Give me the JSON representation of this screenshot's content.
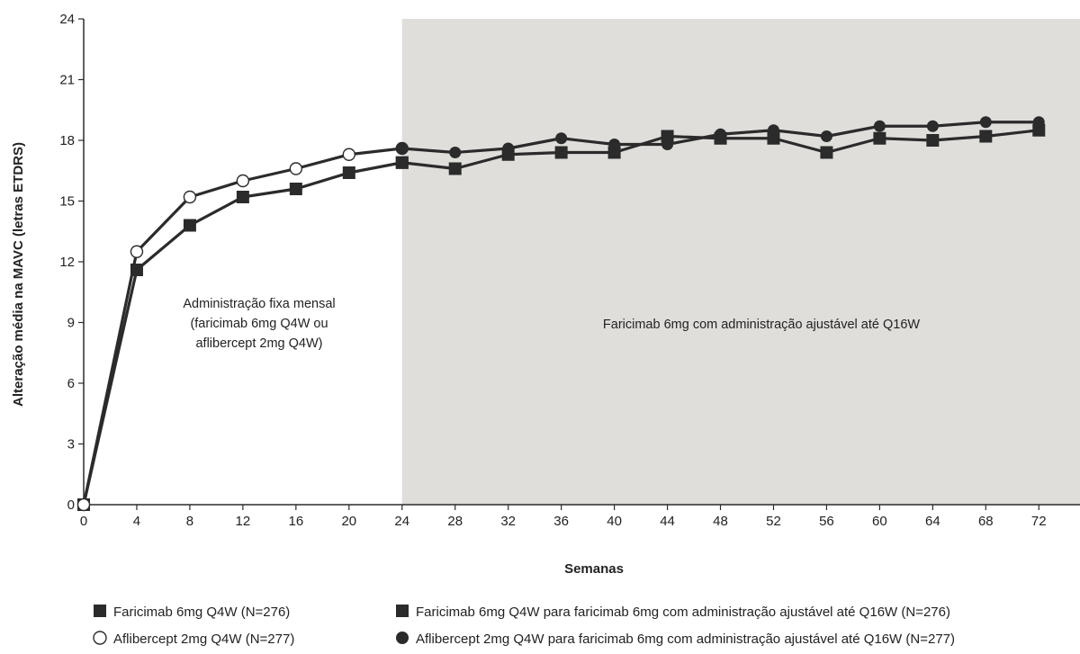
{
  "chart_data": {
    "type": "line",
    "xlabel": "Semanas",
    "ylabel": "Alteração média na MAVC (letras ETDRS)",
    "xlim": [
      0,
      72
    ],
    "ylim": [
      0,
      24
    ],
    "x_ticks": [
      "0",
      "4",
      "8",
      "12",
      "16",
      "20",
      "24",
      "28",
      "32",
      "36",
      "40",
      "44",
      "48",
      "52",
      "56",
      "60",
      "64",
      "68",
      "72"
    ],
    "y_ticks": [
      "0",
      "3",
      "6",
      "9",
      "12",
      "15",
      "18",
      "21",
      "24"
    ],
    "grid": false,
    "legend_position": "bottom",
    "shaded_region": {
      "x_from": 24,
      "x_to": 76,
      "color": "#e0dedb"
    },
    "annotations": [
      [
        "Administração fixa mensal",
        "(faricimab 6mg Q4W ou",
        "aflibercept 2mg Q4W)"
      ],
      [
        "Faricimab 6mg com administração ajustável até Q16W"
      ]
    ],
    "series": [
      {
        "name": "Faricimab 6mg Q4W (N=276)",
        "marker": "square-filled",
        "x": [
          0,
          4,
          8,
          12,
          16,
          20,
          24
        ],
        "y": [
          0,
          11.6,
          13.8,
          15.2,
          15.6,
          16.4,
          16.9
        ]
      },
      {
        "name": "Aflibercept 2mg Q4W (N=277)",
        "marker": "circle-open",
        "x": [
          0,
          4,
          8,
          12,
          16,
          20,
          24
        ],
        "y": [
          0,
          12.5,
          15.2,
          16.0,
          16.6,
          17.3,
          17.6
        ]
      },
      {
        "name": "Faricimab 6mg Q4W para faricimab 6mg com administração ajustável até Q16W (N=276)",
        "marker": "square-filled",
        "x": [
          24,
          28,
          32,
          36,
          40,
          44,
          48,
          52,
          56,
          60,
          64,
          68,
          72
        ],
        "y": [
          16.9,
          16.6,
          17.3,
          17.4,
          17.4,
          18.2,
          18.1,
          18.1,
          17.4,
          18.1,
          18.0,
          18.2,
          18.5
        ]
      },
      {
        "name": "Aflibercept 2mg Q4W para faricimab 6mg com administração ajustável até Q16W (N=277)",
        "marker": "circle-filled",
        "x": [
          24,
          28,
          32,
          36,
          40,
          44,
          48,
          52,
          56,
          60,
          64,
          68,
          72
        ],
        "y": [
          17.6,
          17.4,
          17.6,
          18.1,
          17.8,
          17.8,
          18.3,
          18.5,
          18.2,
          18.7,
          18.7,
          18.9,
          18.9
        ]
      }
    ],
    "line_color": "#2b2b2b"
  }
}
